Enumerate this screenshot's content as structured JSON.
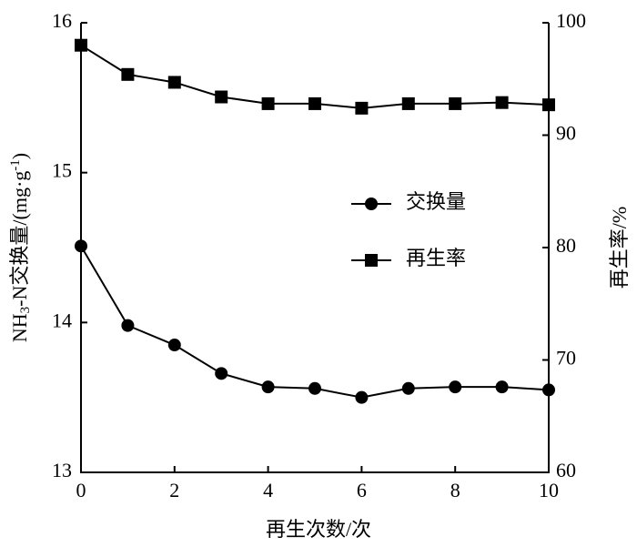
{
  "chart_data": {
    "type": "line",
    "x_label": "再生次数/次",
    "y_label": [
      "NH",
      "3",
      "-N交换量/(mg·g",
      "-1",
      ")"
    ],
    "y2_label": "再生率/%",
    "x": [
      0,
      1,
      2,
      3,
      4,
      5,
      6,
      7,
      8,
      9,
      10
    ],
    "xlim": [
      0,
      10
    ],
    "xticks": [
      0,
      2,
      4,
      6,
      8,
      10
    ],
    "ylim": [
      13,
      16
    ],
    "yticks": [
      13,
      14,
      15,
      16
    ],
    "y2lim": [
      60,
      100
    ],
    "y2ticks": [
      60,
      70,
      80,
      90,
      100
    ],
    "legend": "center",
    "series": [
      {
        "name": "交换量",
        "color": "#000000",
        "marker": "circle",
        "values": [
          14.51,
          13.98,
          13.85,
          13.66,
          13.57,
          13.56,
          13.5,
          13.56,
          13.57,
          13.57,
          13.55
        ]
      },
      {
        "name": "再生率",
        "color": "#000000",
        "marker": "square",
        "axis": "y2",
        "values": [
          98.0,
          95.4,
          94.7,
          93.4,
          92.8,
          92.8,
          92.4,
          92.8,
          92.8,
          92.9,
          92.7
        ]
      }
    ]
  }
}
